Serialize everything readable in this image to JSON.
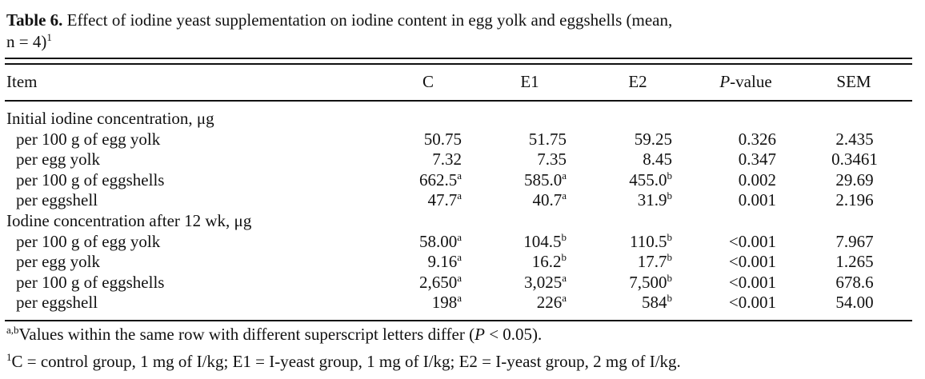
{
  "title": {
    "label": "Table 6.",
    "text": "Effect of iodine yeast supplementation on iodine content in egg yolk and eggshells (mean,",
    "text2": "n = 4)",
    "note": "1"
  },
  "header": {
    "item": "Item",
    "columns": [
      "C",
      "E1",
      "E2"
    ],
    "p_italic": "P",
    "p_rest": "-value",
    "sem": "SEM"
  },
  "groups": [
    {
      "label": "Initial iodine concentration, μg",
      "rows": [
        {
          "item": "per 100 g of egg yolk",
          "cells": [
            {
              "value": "50.75"
            },
            {
              "value": "51.75"
            },
            {
              "value": "59.25"
            }
          ],
          "p": "0.326",
          "sem": "2.435"
        },
        {
          "item": "per egg yolk",
          "cells": [
            {
              "value": "7.32"
            },
            {
              "value": "7.35"
            },
            {
              "value": "8.45"
            }
          ],
          "p": "0.347",
          "sem": "0.3461"
        },
        {
          "item": "per 100 g of eggshells",
          "cells": [
            {
              "value": "662.5",
              "sup": "a"
            },
            {
              "value": "585.0",
              "sup": "a"
            },
            {
              "value": "455.0",
              "sup": "b"
            }
          ],
          "p": "0.002",
          "sem": "29.69"
        },
        {
          "item": "per eggshell",
          "cells": [
            {
              "value": "47.7",
              "sup": "a"
            },
            {
              "value": "40.7",
              "sup": "a"
            },
            {
              "value": "31.9",
              "sup": "b"
            }
          ],
          "p": "0.001",
          "sem": "2.196"
        }
      ]
    },
    {
      "label": "Iodine concentration after 12 wk, μg",
      "rows": [
        {
          "item": "per 100 g of egg yolk",
          "cells": [
            {
              "value": "58.00",
              "sup": "a"
            },
            {
              "value": "104.5",
              "sup": "b"
            },
            {
              "value": "110.5",
              "sup": "b"
            }
          ],
          "p": "<0.001",
          "sem": "7.967"
        },
        {
          "item": "per egg yolk",
          "cells": [
            {
              "value": "9.16",
              "sup": "a"
            },
            {
              "value": "16.2",
              "sup": "b"
            },
            {
              "value": "17.7",
              "sup": "b"
            }
          ],
          "p": "<0.001",
          "sem": "1.265"
        },
        {
          "item": "per 100 g of eggshells",
          "cells": [
            {
              "value": "2,650",
              "sup": "a"
            },
            {
              "value": "3,025",
              "sup": "a"
            },
            {
              "value": "7,500",
              "sup": "b"
            }
          ],
          "p": "<0.001",
          "sem": "678.6"
        },
        {
          "item": "per eggshell",
          "cells": [
            {
              "value": "198",
              "sup": "a"
            },
            {
              "value": "226",
              "sup": "a"
            },
            {
              "value": "584",
              "sup": "b"
            }
          ],
          "p": "<0.001",
          "sem": "54.00"
        }
      ]
    }
  ],
  "footnotes": [
    {
      "sup": "a,b",
      "text": "Values within the same row with different superscript letters differ (",
      "italic": "P",
      "rest": " < 0.05)."
    },
    {
      "sup": "1",
      "text": "C = control group, 1 mg of I/kg; E1 = I-yeast group, 1 mg of I/kg; E2 = I-yeast group, 2 mg of I/kg."
    }
  ]
}
